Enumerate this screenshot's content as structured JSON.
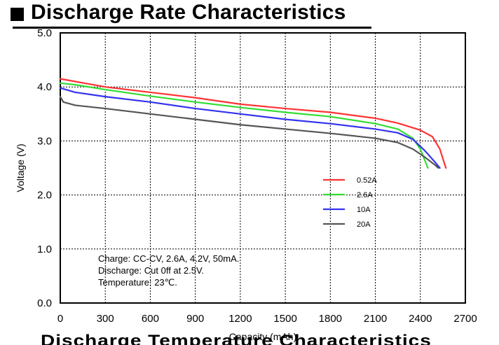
{
  "title": "Discharge Rate Characteristics",
  "chart_data": {
    "type": "line",
    "xlabel": "Capacity (mAh)",
    "ylabel": "Voltage (V)",
    "xlim": [
      0,
      2700
    ],
    "ylim": [
      0,
      5
    ],
    "xticks": [
      0,
      300,
      600,
      900,
      1200,
      1500,
      1800,
      2100,
      2400,
      2700
    ],
    "yticks": [
      "0.0",
      "1.0",
      "2.0",
      "3.0",
      "4.0",
      "5.0"
    ],
    "grid": true,
    "legend_position": "right-middle",
    "series": [
      {
        "name": "0.52A",
        "color": "#ff3333",
        "points": [
          [
            0,
            4.15
          ],
          [
            100,
            4.1
          ],
          [
            300,
            4.0
          ],
          [
            600,
            3.9
          ],
          [
            900,
            3.8
          ],
          [
            1200,
            3.68
          ],
          [
            1500,
            3.6
          ],
          [
            1800,
            3.53
          ],
          [
            2100,
            3.42
          ],
          [
            2250,
            3.33
          ],
          [
            2400,
            3.2
          ],
          [
            2480,
            3.08
          ],
          [
            2530,
            2.85
          ],
          [
            2570,
            2.5
          ]
        ]
      },
      {
        "name": "2.6A",
        "color": "#33dd33",
        "points": [
          [
            0,
            4.07
          ],
          [
            100,
            4.04
          ],
          [
            300,
            3.95
          ],
          [
            600,
            3.83
          ],
          [
            900,
            3.72
          ],
          [
            1200,
            3.62
          ],
          [
            1500,
            3.53
          ],
          [
            1800,
            3.45
          ],
          [
            2100,
            3.32
          ],
          [
            2250,
            3.22
          ],
          [
            2350,
            3.05
          ],
          [
            2400,
            2.85
          ],
          [
            2450,
            2.5
          ]
        ]
      },
      {
        "name": "10A",
        "color": "#3333ee",
        "points": [
          [
            0,
            3.98
          ],
          [
            100,
            3.9
          ],
          [
            300,
            3.82
          ],
          [
            600,
            3.72
          ],
          [
            900,
            3.6
          ],
          [
            1200,
            3.5
          ],
          [
            1500,
            3.4
          ],
          [
            1800,
            3.32
          ],
          [
            2100,
            3.22
          ],
          [
            2250,
            3.15
          ],
          [
            2350,
            3.03
          ],
          [
            2430,
            2.82
          ],
          [
            2500,
            2.6
          ],
          [
            2530,
            2.5
          ]
        ]
      },
      {
        "name": "20A",
        "color": "#555555",
        "points": [
          [
            0,
            3.82
          ],
          [
            20,
            3.72
          ],
          [
            100,
            3.66
          ],
          [
            300,
            3.6
          ],
          [
            600,
            3.5
          ],
          [
            900,
            3.4
          ],
          [
            1200,
            3.3
          ],
          [
            1500,
            3.22
          ],
          [
            1800,
            3.14
          ],
          [
            2100,
            3.05
          ],
          [
            2250,
            2.97
          ],
          [
            2350,
            2.85
          ],
          [
            2430,
            2.7
          ],
          [
            2500,
            2.55
          ],
          [
            2520,
            2.5
          ]
        ]
      }
    ],
    "annotations": [
      "Charge: CC-CV, 2.6A, 4.2V, 50mA.",
      "Discharge: Cut 0ff at 2.5V.",
      "Temperature: 23℃."
    ]
  },
  "footer_ghost": "Discharge Temperature Characteristics"
}
